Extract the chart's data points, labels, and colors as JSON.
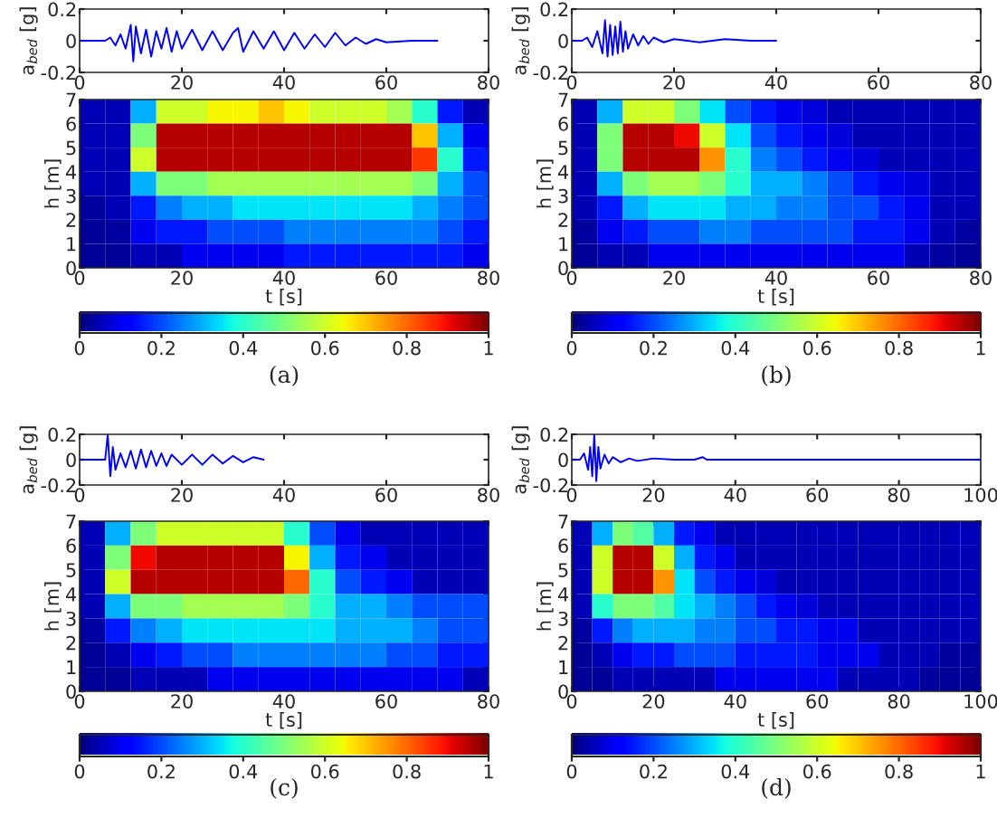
{
  "chart_data": [
    {
      "type": "line",
      "ylabel": "a$_{bed}$ [g]",
      "xlim": [
        0,
        80
      ],
      "xticks": [
        0,
        20,
        40,
        60,
        80
      ],
      "ylim": [
        -0.2,
        0.2
      ],
      "yticks": [
        -0.2,
        0,
        0.2
      ],
      "grid": false,
      "legend": false,
      "series": [
        {
          "color": "#0000ff",
          "x": [
            0,
            5,
            6,
            7,
            8,
            9,
            10,
            10.5,
            11,
            12,
            13,
            14,
            15,
            16,
            17,
            18,
            19,
            20,
            22,
            24,
            26,
            28,
            30,
            31,
            32,
            34,
            36,
            38,
            40,
            42,
            44,
            46,
            48,
            50,
            52,
            54,
            56,
            58,
            60,
            65,
            70
          ],
          "values": [
            0,
            0,
            0.02,
            -0.03,
            0.04,
            -0.05,
            0.1,
            -0.13,
            0.09,
            -0.08,
            0.07,
            -0.1,
            0.06,
            -0.05,
            0.08,
            -0.07,
            0.06,
            -0.05,
            0.07,
            -0.06,
            0.06,
            -0.06,
            0.05,
            0.08,
            -0.07,
            0.06,
            -0.05,
            0.06,
            -0.06,
            0.05,
            -0.05,
            0.04,
            -0.04,
            0.05,
            -0.03,
            0.02,
            -0.02,
            0.01,
            -0.01,
            0,
            0
          ]
        }
      ]
    },
    {
      "type": "heatmap",
      "xlabel": "t [s]",
      "ylabel": "h [m]",
      "xlim": [
        0,
        80
      ],
      "xticks": [
        0,
        20,
        40,
        60,
        80
      ],
      "ylim": [
        0,
        7
      ],
      "yticks": [
        0,
        1,
        2,
        3,
        4,
        5,
        6,
        7
      ],
      "clim": [
        0,
        1
      ],
      "cticks": [
        0,
        0.2,
        0.4,
        0.6,
        0.8,
        1
      ],
      "annotations": [
        "(a)"
      ],
      "cells": [
        [
          0.05,
          0.05,
          0.3,
          0.6,
          0.6,
          0.65,
          0.65,
          0.7,
          0.65,
          0.6,
          0.6,
          0.6,
          0.55,
          0.4,
          0.15,
          0.05
        ],
        [
          0.05,
          0.05,
          0.5,
          0.95,
          0.95,
          0.95,
          0.95,
          0.95,
          0.95,
          0.95,
          0.95,
          0.95,
          0.95,
          0.7,
          0.3,
          0.1
        ],
        [
          0.05,
          0.05,
          0.6,
          0.95,
          0.95,
          0.95,
          0.95,
          0.95,
          0.95,
          0.95,
          0.95,
          0.95,
          0.95,
          0.85,
          0.4,
          0.15
        ],
        [
          0.05,
          0.05,
          0.3,
          0.5,
          0.5,
          0.55,
          0.55,
          0.55,
          0.55,
          0.55,
          0.55,
          0.55,
          0.55,
          0.5,
          0.3,
          0.2
        ],
        [
          0.03,
          0.05,
          0.15,
          0.25,
          0.3,
          0.3,
          0.35,
          0.35,
          0.35,
          0.35,
          0.35,
          0.35,
          0.35,
          0.3,
          0.25,
          0.2
        ],
        [
          0.02,
          0.03,
          0.1,
          0.15,
          0.15,
          0.2,
          0.2,
          0.2,
          0.25,
          0.25,
          0.25,
          0.25,
          0.25,
          0.25,
          0.2,
          0.15
        ],
        [
          0.02,
          0.02,
          0.05,
          0.05,
          0.1,
          0.1,
          0.1,
          0.1,
          0.15,
          0.15,
          0.15,
          0.15,
          0.15,
          0.15,
          0.15,
          0.1
        ]
      ]
    },
    {
      "type": "line",
      "ylabel": "a$_{bed}$ [g]",
      "xlim": [
        0,
        80
      ],
      "xticks": [
        0,
        20,
        40,
        60,
        80
      ],
      "ylim": [
        -0.2,
        0.2
      ],
      "yticks": [
        -0.2,
        0,
        0.2
      ],
      "grid": false,
      "legend": false,
      "series": [
        {
          "color": "#0000ff",
          "x": [
            0,
            2,
            3,
            4,
            5,
            6,
            6.5,
            7,
            7.5,
            8,
            8.5,
            9,
            9.5,
            10,
            10.5,
            11,
            12,
            13,
            14,
            15,
            16,
            18,
            20,
            25,
            30,
            35,
            40
          ],
          "values": [
            0,
            0,
            0.02,
            -0.04,
            0.06,
            -0.08,
            0.13,
            -0.1,
            0.1,
            -0.09,
            0.09,
            -0.08,
            0.12,
            -0.07,
            0.06,
            -0.05,
            0.04,
            -0.03,
            0.03,
            -0.02,
            0.02,
            -0.01,
            0.01,
            -0.01,
            0.01,
            0,
            0
          ]
        }
      ]
    },
    {
      "type": "heatmap",
      "xlabel": "t [s]",
      "ylabel": "h [m]",
      "xlim": [
        0,
        80
      ],
      "xticks": [
        0,
        20,
        40,
        60,
        80
      ],
      "ylim": [
        0,
        7
      ],
      "yticks": [
        0,
        1,
        2,
        3,
        4,
        5,
        6,
        7
      ],
      "clim": [
        0,
        1
      ],
      "cticks": [
        0,
        0.2,
        0.4,
        0.6,
        0.8,
        1
      ],
      "annotations": [
        "(b)"
      ],
      "cells": [
        [
          0.05,
          0.3,
          0.6,
          0.6,
          0.5,
          0.35,
          0.2,
          0.15,
          0.1,
          0.08,
          0.05,
          0.05,
          0.05,
          0.05,
          0.05,
          0.05
        ],
        [
          0.05,
          0.5,
          0.95,
          0.95,
          0.9,
          0.6,
          0.35,
          0.2,
          0.15,
          0.1,
          0.08,
          0.05,
          0.05,
          0.05,
          0.05,
          0.05
        ],
        [
          0.05,
          0.5,
          0.95,
          0.95,
          0.95,
          0.75,
          0.4,
          0.25,
          0.2,
          0.15,
          0.1,
          0.08,
          0.05,
          0.05,
          0.05,
          0.05
        ],
        [
          0.05,
          0.3,
          0.5,
          0.55,
          0.55,
          0.5,
          0.4,
          0.3,
          0.3,
          0.25,
          0.2,
          0.15,
          0.1,
          0.08,
          0.05,
          0.05
        ],
        [
          0.05,
          0.15,
          0.3,
          0.35,
          0.35,
          0.35,
          0.3,
          0.3,
          0.25,
          0.25,
          0.2,
          0.2,
          0.15,
          0.1,
          0.05,
          0.05
        ],
        [
          0.03,
          0.1,
          0.15,
          0.2,
          0.2,
          0.25,
          0.25,
          0.2,
          0.2,
          0.2,
          0.2,
          0.15,
          0.15,
          0.1,
          0.05,
          0.03
        ],
        [
          0.02,
          0.05,
          0.05,
          0.1,
          0.1,
          0.1,
          0.1,
          0.1,
          0.1,
          0.1,
          0.1,
          0.1,
          0.1,
          0.05,
          0.03,
          0.02
        ]
      ]
    },
    {
      "type": "line",
      "ylabel": "a$_{bed}$ [g]",
      "xlim": [
        0,
        80
      ],
      "xticks": [
        0,
        20,
        40,
        60,
        80
      ],
      "ylim": [
        -0.2,
        0.2
      ],
      "yticks": [
        -0.2,
        0,
        0.2
      ],
      "grid": false,
      "legend": false,
      "series": [
        {
          "color": "#0000ff",
          "x": [
            0,
            5,
            5.5,
            6,
            6.5,
            7,
            8,
            9,
            10,
            11,
            12,
            13,
            14,
            15,
            16,
            17,
            18,
            20,
            22,
            24,
            26,
            28,
            30,
            32,
            34,
            36
          ],
          "values": [
            0,
            0,
            0.2,
            -0.13,
            0.1,
            -0.08,
            0.05,
            -0.06,
            0.07,
            -0.07,
            0.08,
            -0.06,
            0.07,
            -0.05,
            0.05,
            -0.05,
            0.04,
            -0.04,
            0.04,
            -0.04,
            0.04,
            -0.03,
            0.03,
            -0.02,
            0.02,
            0
          ]
        }
      ]
    },
    {
      "type": "heatmap",
      "xlabel": "t [s]",
      "ylabel": "h [m]",
      "xlim": [
        0,
        80
      ],
      "xticks": [
        0,
        20,
        40,
        60,
        80
      ],
      "ylim": [
        0,
        7
      ],
      "yticks": [
        0,
        1,
        2,
        3,
        4,
        5,
        6,
        7
      ],
      "clim": [
        0,
        1
      ],
      "cticks": [
        0,
        0.2,
        0.4,
        0.6,
        0.8,
        1
      ],
      "annotations": [
        "(c)"
      ],
      "cells": [
        [
          0.05,
          0.3,
          0.5,
          0.6,
          0.6,
          0.6,
          0.6,
          0.6,
          0.4,
          0.2,
          0.1,
          0.05,
          0.05,
          0.05,
          0.05,
          0.05
        ],
        [
          0.05,
          0.5,
          0.9,
          0.95,
          0.95,
          0.95,
          0.95,
          0.95,
          0.65,
          0.3,
          0.15,
          0.1,
          0.05,
          0.05,
          0.05,
          0.05
        ],
        [
          0.05,
          0.6,
          0.95,
          0.95,
          0.95,
          0.95,
          0.95,
          0.95,
          0.8,
          0.4,
          0.2,
          0.15,
          0.1,
          0.05,
          0.05,
          0.05
        ],
        [
          0.05,
          0.3,
          0.5,
          0.5,
          0.55,
          0.55,
          0.55,
          0.55,
          0.5,
          0.4,
          0.3,
          0.3,
          0.25,
          0.2,
          0.2,
          0.2
        ],
        [
          0.03,
          0.15,
          0.25,
          0.3,
          0.35,
          0.35,
          0.35,
          0.35,
          0.35,
          0.35,
          0.3,
          0.3,
          0.3,
          0.25,
          0.2,
          0.2
        ],
        [
          0.02,
          0.05,
          0.1,
          0.15,
          0.2,
          0.2,
          0.25,
          0.25,
          0.25,
          0.25,
          0.25,
          0.25,
          0.2,
          0.2,
          0.15,
          0.15
        ],
        [
          0.02,
          0.02,
          0.05,
          0.05,
          0.05,
          0.1,
          0.1,
          0.1,
          0.1,
          0.1,
          0.1,
          0.1,
          0.1,
          0.1,
          0.1,
          0.05
        ]
      ]
    },
    {
      "type": "line",
      "ylabel": "a$_{bed}$ [g]",
      "xlim": [
        0,
        100
      ],
      "xticks": [
        0,
        20,
        40,
        60,
        80,
        100
      ],
      "ylim": [
        -0.2,
        0.2
      ],
      "yticks": [
        -0.2,
        0,
        0.2
      ],
      "grid": false,
      "legend": false,
      "series": [
        {
          "color": "#0000ff",
          "x": [
            0,
            2,
            3,
            4,
            4.5,
            5,
            5.5,
            6,
            6.5,
            7,
            8,
            9,
            10,
            12,
            14,
            16,
            20,
            25,
            30,
            32,
            33,
            40,
            50,
            60,
            80,
            100
          ],
          "values": [
            0,
            0,
            0.05,
            -0.08,
            0.1,
            -0.13,
            0.2,
            -0.17,
            0.1,
            -0.07,
            0.04,
            -0.03,
            0.02,
            -0.02,
            0.01,
            -0.01,
            0.01,
            0,
            0,
            0.02,
            0,
            0,
            0,
            0,
            0,
            0
          ]
        }
      ]
    },
    {
      "type": "heatmap",
      "xlabel": "t [s]",
      "ylabel": "h [m]",
      "xlim": [
        0,
        100
      ],
      "xticks": [
        0,
        20,
        40,
        60,
        80,
        100
      ],
      "ylim": [
        0,
        7
      ],
      "yticks": [
        0,
        1,
        2,
        3,
        4,
        5,
        6,
        7
      ],
      "clim": [
        0,
        1
      ],
      "cticks": [
        0,
        0.2,
        0.4,
        0.6,
        0.8,
        1
      ],
      "annotations": [
        "(d)"
      ],
      "cells": [
        [
          0.05,
          0.3,
          0.5,
          0.45,
          0.3,
          0.15,
          0.1,
          0.05,
          0.05,
          0.05,
          0.05,
          0.05,
          0.05,
          0.05,
          0.05,
          0.05,
          0.05,
          0.05,
          0.05,
          0.05
        ],
        [
          0.05,
          0.6,
          0.95,
          0.95,
          0.6,
          0.3,
          0.15,
          0.1,
          0.05,
          0.05,
          0.05,
          0.05,
          0.05,
          0.05,
          0.05,
          0.05,
          0.05,
          0.05,
          0.05,
          0.05
        ],
        [
          0.05,
          0.6,
          0.95,
          0.95,
          0.75,
          0.35,
          0.2,
          0.15,
          0.1,
          0.08,
          0.05,
          0.05,
          0.05,
          0.05,
          0.05,
          0.05,
          0.05,
          0.05,
          0.05,
          0.05
        ],
        [
          0.05,
          0.4,
          0.5,
          0.5,
          0.45,
          0.35,
          0.3,
          0.25,
          0.2,
          0.15,
          0.1,
          0.08,
          0.05,
          0.05,
          0.05,
          0.05,
          0.05,
          0.05,
          0.05,
          0.05
        ],
        [
          0.03,
          0.15,
          0.25,
          0.3,
          0.3,
          0.3,
          0.25,
          0.25,
          0.2,
          0.2,
          0.15,
          0.15,
          0.1,
          0.1,
          0.05,
          0.05,
          0.05,
          0.05,
          0.05,
          0.05
        ],
        [
          0.02,
          0.05,
          0.1,
          0.15,
          0.15,
          0.2,
          0.2,
          0.2,
          0.15,
          0.15,
          0.15,
          0.15,
          0.1,
          0.1,
          0.1,
          0.05,
          0.05,
          0.05,
          0.03,
          0.03
        ],
        [
          0.02,
          0.02,
          0.05,
          0.05,
          0.05,
          0.05,
          0.05,
          0.1,
          0.1,
          0.1,
          0.1,
          0.1,
          0.1,
          0.05,
          0.05,
          0.05,
          0.05,
          0.03,
          0.02,
          0.02
        ]
      ]
    }
  ]
}
